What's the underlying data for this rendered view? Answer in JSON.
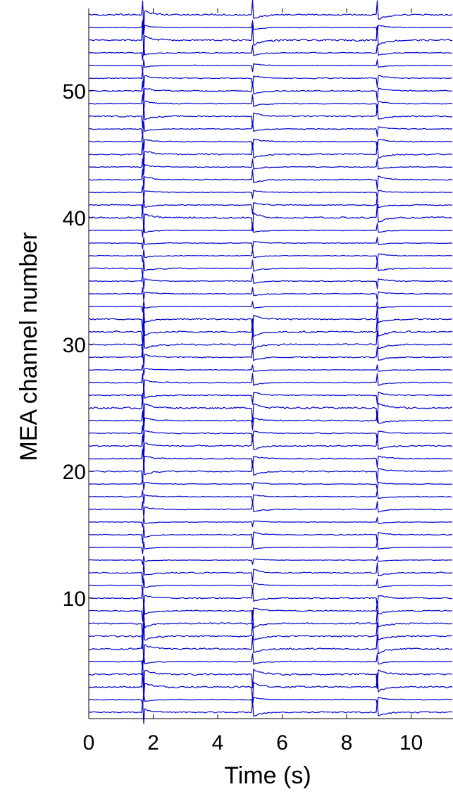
{
  "chart_data": {
    "type": "line",
    "title": "",
    "xlabel": "Time (s)",
    "ylabel": "MEA channel number",
    "xlim": [
      0,
      11.3
    ],
    "ylim": [
      0.5,
      56.5
    ],
    "x_ticks": [
      0,
      2,
      4,
      6,
      8,
      10
    ],
    "x_tick_labels": [
      "0",
      "2",
      "4",
      "6",
      "8",
      "10"
    ],
    "y_ticks": [
      10,
      20,
      30,
      40,
      50
    ],
    "y_tick_labels": [
      "10",
      "20",
      "30",
      "40",
      "50"
    ],
    "channel_count": 56,
    "burst_times_s": [
      1.68,
      5.08,
      8.95
    ],
    "trace_color": "#0000cc",
    "grid": false,
    "legend": "none"
  }
}
